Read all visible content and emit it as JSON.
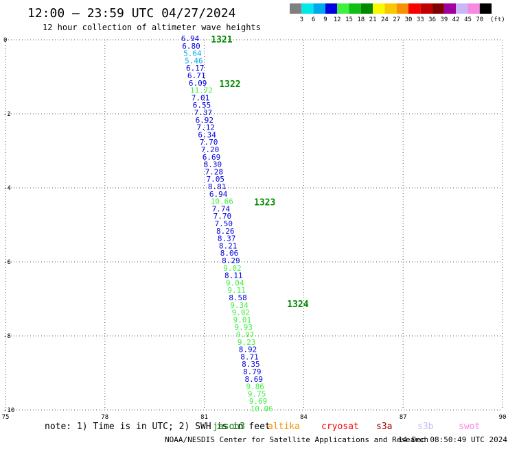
{
  "header": {
    "title": "12:00 – 23:59 UTC 04/27/2024",
    "subtitle": "12 hour collection of altimeter wave heights"
  },
  "legend": {
    "unit": "(ft)",
    "bins": [
      {
        "label": "3",
        "color": "#808080"
      },
      {
        "label": "6",
        "color": "#00e8e8"
      },
      {
        "label": "9",
        "color": "#00a8f0"
      },
      {
        "label": "12",
        "color": "#0000e0"
      },
      {
        "label": "15",
        "color": "#40f040"
      },
      {
        "label": "18",
        "color": "#10c010"
      },
      {
        "label": "21",
        "color": "#008800"
      },
      {
        "label": "24",
        "color": "#f8f800"
      },
      {
        "label": "27",
        "color": "#f8c800"
      },
      {
        "label": "30",
        "color": "#f89000"
      },
      {
        "label": "33",
        "color": "#f80000"
      },
      {
        "label": "36",
        "color": "#c00000"
      },
      {
        "label": "39",
        "color": "#800000"
      },
      {
        "label": "42",
        "color": "#a000a0"
      },
      {
        "label": "45",
        "color": "#c8b8f8"
      },
      {
        "label": "70",
        "color": "#f888e0"
      },
      {
        "label": "",
        "color": "#000000"
      }
    ]
  },
  "note": {
    "text": "note: 1) Time is in UTC; 2) SWH is in feet"
  },
  "missions": [
    {
      "name": "jason3",
      "color": "#008800"
    },
    {
      "name": "altika",
      "color": "#f89000"
    },
    {
      "name": "cryosat",
      "color": "#f80000"
    },
    {
      "name": "s3a",
      "color": "#a00000"
    },
    {
      "name": "s3b",
      "color": "#c8b8f8"
    },
    {
      "name": "swot",
      "color": "#f888e0"
    }
  ],
  "footer": {
    "credit": "NOAA/NESDIS Center for Satellite Applications and Research",
    "timestamp": "14 Dec 08:50:49 UTC 2024"
  },
  "chart_data": {
    "type": "scatter",
    "xlim": [
      75,
      90
    ],
    "ylim": [
      -10,
      0
    ],
    "x_ticks": [
      75,
      78,
      81,
      84,
      87,
      90
    ],
    "y_ticks": [
      0,
      -2,
      -4,
      -6,
      -8,
      -10
    ],
    "grid": true,
    "passes": [
      {
        "label": "1321",
        "lon": 81.2,
        "lat": 0.0
      },
      {
        "label": "1322",
        "lon": 81.45,
        "lat": -1.2
      },
      {
        "label": "1323",
        "lon": 82.5,
        "lat": -4.4
      },
      {
        "label": "1324",
        "lon": 83.5,
        "lat": -7.15
      }
    ],
    "points": [
      {
        "lon": 80.3,
        "lat": 0.0,
        "swh": "6.94"
      },
      {
        "lon": 80.33,
        "lat": -0.2,
        "swh": "6.80"
      },
      {
        "lon": 80.37,
        "lat": -0.4,
        "swh": "5.64"
      },
      {
        "lon": 80.41,
        "lat": -0.6,
        "swh": "5.46"
      },
      {
        "lon": 80.45,
        "lat": -0.8,
        "swh": "6.17"
      },
      {
        "lon": 80.49,
        "lat": -1.0,
        "swh": "6.71"
      },
      {
        "lon": 80.53,
        "lat": -1.2,
        "swh": "6.09"
      },
      {
        "lon": 80.57,
        "lat": -1.4,
        "swh": "11.72"
      },
      {
        "lon": 80.61,
        "lat": -1.6,
        "swh": "7.01"
      },
      {
        "lon": 80.65,
        "lat": -1.8,
        "swh": "6.55"
      },
      {
        "lon": 80.69,
        "lat": -2.0,
        "swh": "7.37"
      },
      {
        "lon": 80.73,
        "lat": -2.2,
        "swh": "6.92"
      },
      {
        "lon": 80.77,
        "lat": -2.4,
        "swh": "7.12"
      },
      {
        "lon": 80.81,
        "lat": -2.6,
        "swh": "6.34"
      },
      {
        "lon": 80.86,
        "lat": -2.8,
        "swh": "7.70"
      },
      {
        "lon": 80.9,
        "lat": -3.0,
        "swh": "7.20"
      },
      {
        "lon": 80.94,
        "lat": -3.2,
        "swh": "6.69"
      },
      {
        "lon": 80.98,
        "lat": -3.4,
        "swh": "8.30"
      },
      {
        "lon": 81.02,
        "lat": -3.6,
        "swh": "7.28"
      },
      {
        "lon": 81.06,
        "lat": -3.8,
        "swh": "7.05"
      },
      {
        "lon": 81.11,
        "lat": -4.0,
        "swh": "8.81"
      },
      {
        "lon": 81.15,
        "lat": -4.2,
        "swh": "6.94"
      },
      {
        "lon": 81.19,
        "lat": -4.4,
        "swh": "10.66"
      },
      {
        "lon": 81.23,
        "lat": -4.6,
        "swh": "7.74"
      },
      {
        "lon": 81.27,
        "lat": -4.8,
        "swh": "7.70"
      },
      {
        "lon": 81.31,
        "lat": -5.0,
        "swh": "7.50"
      },
      {
        "lon": 81.36,
        "lat": -5.2,
        "swh": "8.26"
      },
      {
        "lon": 81.4,
        "lat": -5.4,
        "swh": "8.37"
      },
      {
        "lon": 81.44,
        "lat": -5.6,
        "swh": "8.21"
      },
      {
        "lon": 81.48,
        "lat": -5.8,
        "swh": "8.06"
      },
      {
        "lon": 81.53,
        "lat": -6.0,
        "swh": "8.29"
      },
      {
        "lon": 81.57,
        "lat": -6.2,
        "swh": "9.02"
      },
      {
        "lon": 81.61,
        "lat": -6.4,
        "swh": "8.11"
      },
      {
        "lon": 81.65,
        "lat": -6.6,
        "swh": "9.04"
      },
      {
        "lon": 81.7,
        "lat": -6.8,
        "swh": "9.11"
      },
      {
        "lon": 81.74,
        "lat": -7.0,
        "swh": "8.58"
      },
      {
        "lon": 81.78,
        "lat": -7.2,
        "swh": "9.34"
      },
      {
        "lon": 81.83,
        "lat": -7.4,
        "swh": "9.02"
      },
      {
        "lon": 81.87,
        "lat": -7.6,
        "swh": "9.01"
      },
      {
        "lon": 81.91,
        "lat": -7.8,
        "swh": "9.93"
      },
      {
        "lon": 81.96,
        "lat": -8.0,
        "swh": "9.97"
      },
      {
        "lon": 82.0,
        "lat": -8.2,
        "swh": "9.23"
      },
      {
        "lon": 82.04,
        "lat": -8.4,
        "swh": "8.92"
      },
      {
        "lon": 82.09,
        "lat": -8.6,
        "swh": "8.71"
      },
      {
        "lon": 82.13,
        "lat": -8.8,
        "swh": "8.35"
      },
      {
        "lon": 82.17,
        "lat": -9.0,
        "swh": "8.79"
      },
      {
        "lon": 82.22,
        "lat": -9.2,
        "swh": "8.69"
      },
      {
        "lon": 82.26,
        "lat": -9.4,
        "swh": "9.86"
      },
      {
        "lon": 82.31,
        "lat": -9.6,
        "swh": "9.75"
      },
      {
        "lon": 82.35,
        "lat": -9.8,
        "swh": "9.69"
      },
      {
        "lon": 82.39,
        "lat": -10.0,
        "swh": "10.06"
      }
    ]
  }
}
